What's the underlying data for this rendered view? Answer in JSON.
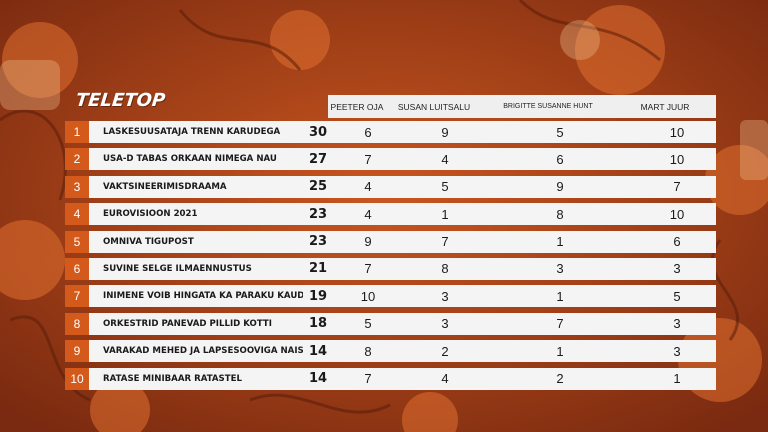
{
  "brand": {
    "logo": "TELETOP"
  },
  "judges": [
    "PEETER OJA",
    "SUSAN LUITSALU",
    "BRIGITTE SUSANNE HUNT",
    "MART JUUR"
  ],
  "rows": [
    {
      "rank": "1",
      "title": "LASKESUUSATAJA TRENN KARUDEGA",
      "total": "30",
      "scores": [
        "6",
        "9",
        "5",
        "10"
      ]
    },
    {
      "rank": "2",
      "title": "USA-D TABAS ORKAAN NIMEGA NAU",
      "total": "27",
      "scores": [
        "7",
        "4",
        "6",
        "10"
      ]
    },
    {
      "rank": "3",
      "title": "VAKTSINEERIMISDRAAMA",
      "total": "25",
      "scores": [
        "4",
        "5",
        "9",
        "7"
      ]
    },
    {
      "rank": "4",
      "title": "EUROVISIOON 2021",
      "total": "23",
      "scores": [
        "4",
        "1",
        "8",
        "10"
      ]
    },
    {
      "rank": "5",
      "title": "OMNIVA TIGUPOST",
      "total": "23",
      "scores": [
        "9",
        "7",
        "1",
        "6"
      ]
    },
    {
      "rank": "6",
      "title": "SUVINE SELGE ILMAENNUSTUS",
      "total": "21",
      "scores": [
        "7",
        "8",
        "3",
        "3"
      ]
    },
    {
      "rank": "7",
      "title": "INIMENE VÕIB HINGATA KA PÄRAKU KAUDU",
      "total": "19",
      "scores": [
        "10",
        "3",
        "1",
        "5"
      ]
    },
    {
      "rank": "8",
      "title": "ORKESTRID PANEVAD PILLID KOTTI",
      "total": "18",
      "scores": [
        "5",
        "3",
        "7",
        "3"
      ]
    },
    {
      "rank": "9",
      "title": "VARAKAD MEHED JA LAPSESOOVIGA NAISED",
      "total": "14",
      "scores": [
        "8",
        "2",
        "1",
        "3"
      ]
    },
    {
      "rank": "10",
      "title": "RATASE MINIBAAR RATASTEL",
      "total": "14",
      "scores": [
        "7",
        "4",
        "2",
        "1"
      ]
    }
  ],
  "colors": {
    "accent": "#d45a1c",
    "background": "#b8431a",
    "row_bg": "#f4f4f4"
  }
}
